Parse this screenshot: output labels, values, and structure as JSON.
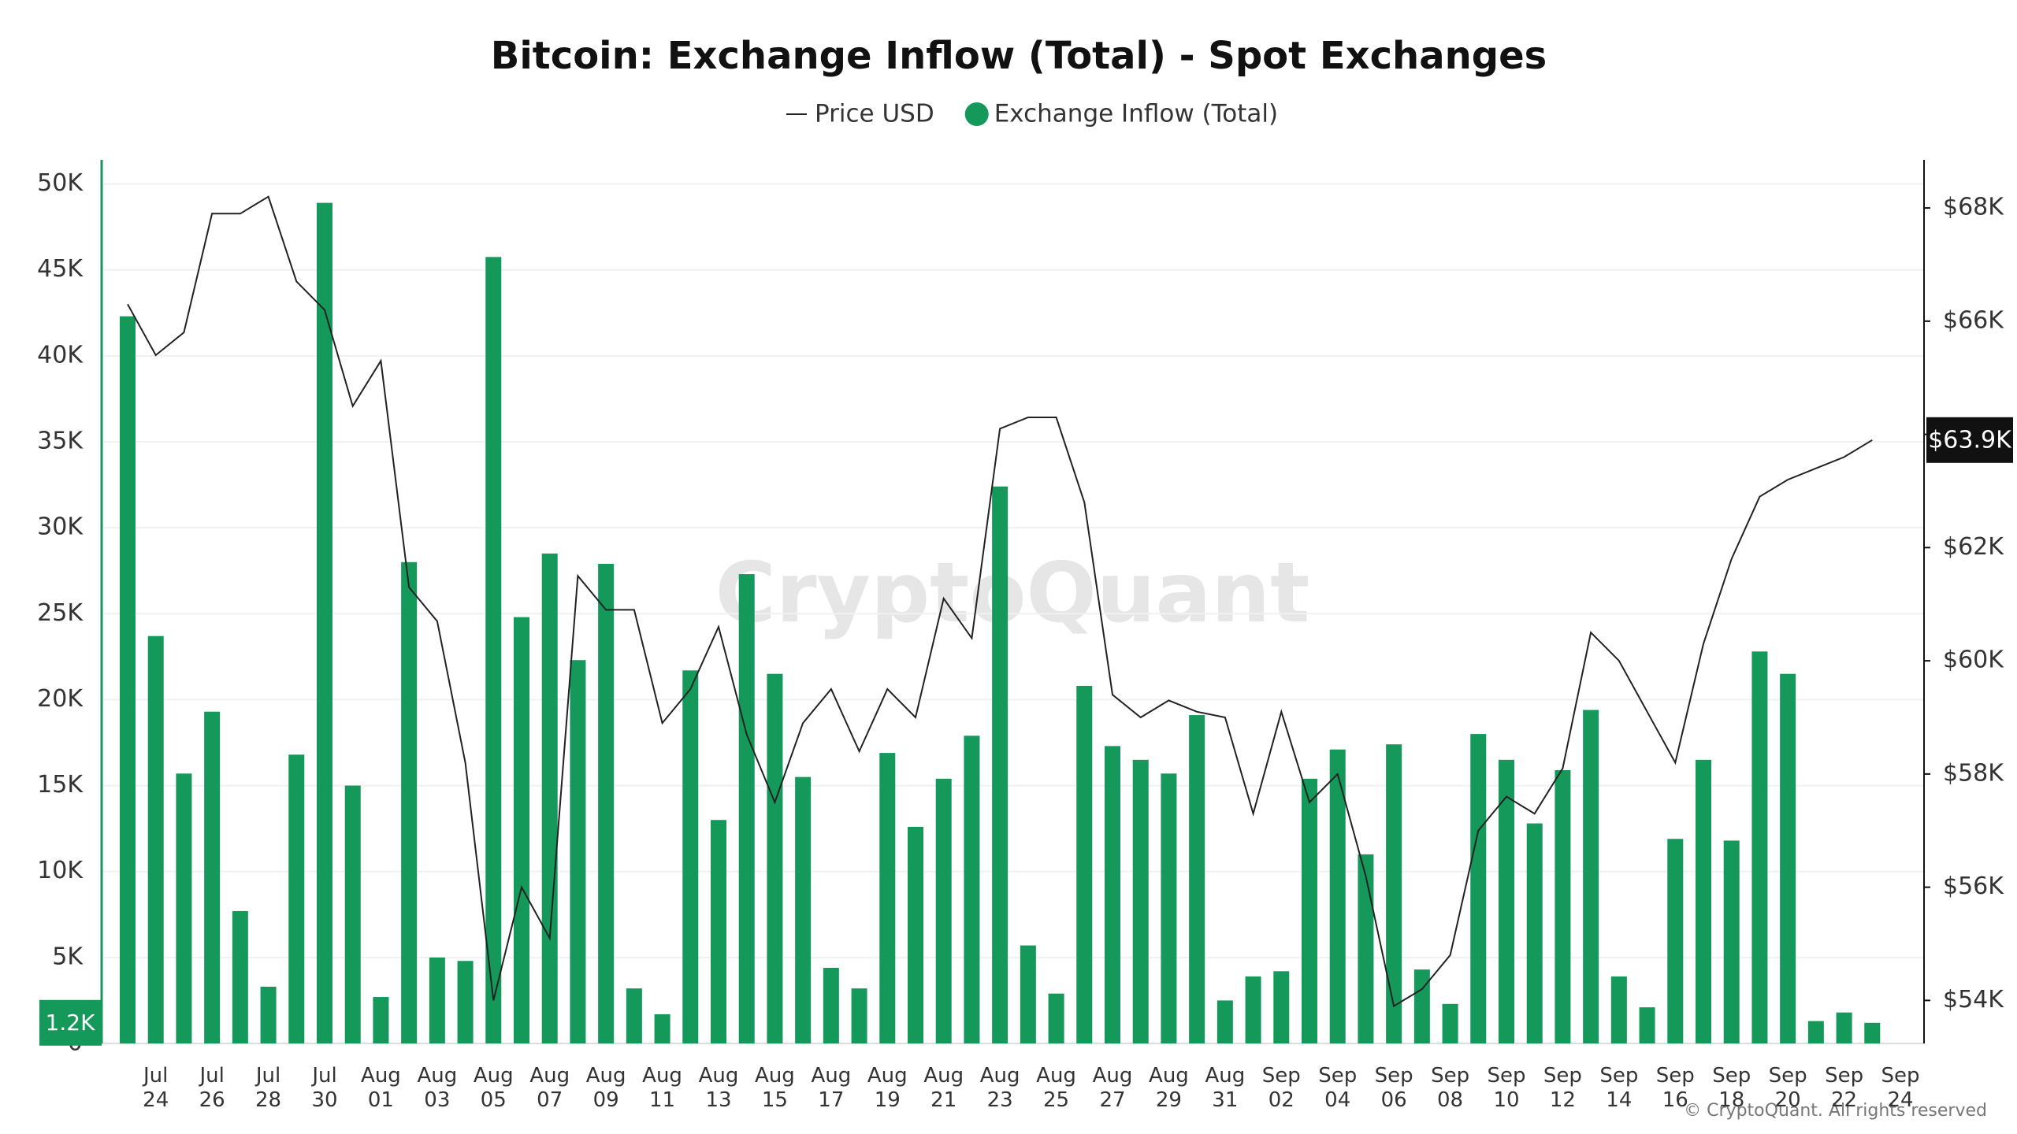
{
  "chart_data": {
    "type": "bar",
    "title": "Bitcoin: Exchange Inflow (Total) - Spot Exchanges",
    "watermark": "CryptoQuant",
    "copyright": "© CryptoQuant. All rights reserved",
    "categories": [
      null,
      "Jul 24",
      null,
      "Jul 26",
      null,
      "Jul 28",
      null,
      "Jul 30",
      null,
      "Aug 01",
      null,
      "Aug 03",
      null,
      "Aug 05",
      null,
      "Aug 07",
      null,
      "Aug 09",
      null,
      "Aug 11",
      null,
      "Aug 13",
      null,
      "Aug 15",
      null,
      "Aug 17",
      null,
      "Aug 19",
      null,
      "Aug 21",
      null,
      "Aug 23",
      null,
      "Aug 25",
      null,
      "Aug 27",
      null,
      "Aug 29",
      null,
      "Aug 31",
      null,
      "Sep 02",
      null,
      "Sep 04",
      null,
      "Sep 06",
      null,
      "Sep 08",
      null,
      "Sep 10",
      null,
      "Sep 12",
      null,
      "Sep 14",
      null,
      "Sep 16",
      null,
      "Sep 18",
      null,
      "Sep 20",
      null,
      "Sep 22",
      null,
      "Sep 24"
    ],
    "series": [
      {
        "name": "Price USD",
        "type": "line",
        "axis": "y2",
        "color": "#222222",
        "values": [
          66300,
          65400,
          65800,
          67900,
          67900,
          68200,
          66700,
          66200,
          64500,
          65300,
          61300,
          60700,
          58200,
          54000,
          56000,
          55100,
          61500,
          60900,
          60900,
          58900,
          59500,
          60600,
          58700,
          57500,
          58900,
          59500,
          58400,
          59500,
          59000,
          61100,
          60400,
          64100,
          64300,
          64300,
          62800,
          59400,
          59000,
          59300,
          59100,
          59000,
          57300,
          59100,
          57500,
          58000,
          56200,
          53900,
          54200,
          54800,
          57000,
          57600,
          57300,
          58100,
          60500,
          60000,
          59100,
          58200,
          60300,
          61800,
          62900,
          63200,
          63400,
          63600,
          63900,
          null
        ]
      },
      {
        "name": "Exchange Inflow (Total)",
        "type": "bar",
        "axis": "y",
        "color": "#14995a",
        "values": [
          42300,
          23700,
          15700,
          19300,
          7700,
          3300,
          16800,
          48900,
          15000,
          2700,
          28000,
          5000,
          4800,
          45750,
          24800,
          28500,
          22300,
          27900,
          3200,
          1700,
          21700,
          13000,
          27300,
          21500,
          15500,
          4400,
          3200,
          16900,
          12600,
          15400,
          17900,
          32400,
          5700,
          2900,
          20800,
          17300,
          16500,
          15700,
          19100,
          2500,
          3900,
          4200,
          15400,
          17100,
          11000,
          17400,
          4300,
          2300,
          18000,
          16500,
          12800,
          15900,
          19400,
          3900,
          2100,
          11900,
          16500,
          11800,
          22800,
          21500,
          1300,
          1800,
          1200,
          null
        ]
      }
    ],
    "ylim": [
      0,
      51400
    ],
    "yticks": [
      {
        "value": 0,
        "label": "0"
      },
      {
        "value": 5000,
        "label": "5K"
      },
      {
        "value": 10000,
        "label": "10K"
      },
      {
        "value": 15000,
        "label": "15K"
      },
      {
        "value": 20000,
        "label": "20K"
      },
      {
        "value": 25000,
        "label": "25K"
      },
      {
        "value": 30000,
        "label": "30K"
      },
      {
        "value": 35000,
        "label": "35K"
      },
      {
        "value": 40000,
        "label": "40K"
      },
      {
        "value": 45000,
        "label": "45K"
      },
      {
        "value": 50000,
        "label": "50K"
      }
    ],
    "y2lim": [
      53240,
      68850
    ],
    "y2ticks": [
      {
        "value": 54000,
        "label": "$54K"
      },
      {
        "value": 56000,
        "label": "$56K"
      },
      {
        "value": 58000,
        "label": "$58K"
      },
      {
        "value": 60000,
        "label": "$60K"
      },
      {
        "value": 62000,
        "label": "$62K"
      },
      {
        "value": 64000,
        "label": "$64K"
      },
      {
        "value": 66000,
        "label": "$66K"
      },
      {
        "value": 68000,
        "label": "$68K"
      }
    ],
    "annotations": [
      {
        "label": "1.2K",
        "value": 1200,
        "axis": "y"
      },
      {
        "label": "$63.9K",
        "value": 63900,
        "axis": "y2"
      }
    ],
    "grid": true
  }
}
